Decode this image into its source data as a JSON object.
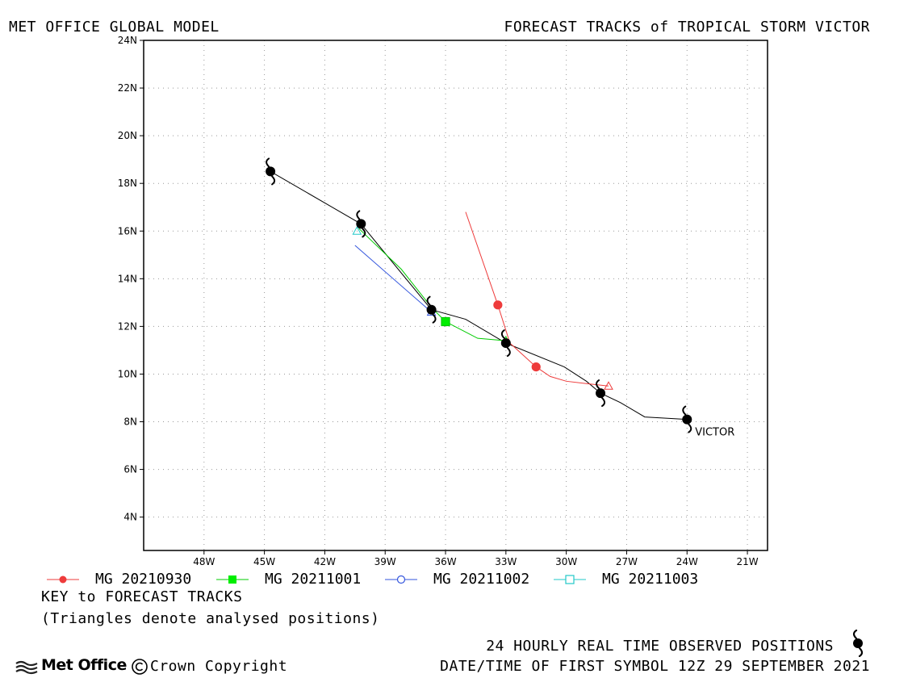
{
  "header": {
    "left_title": "MET OFFICE GLOBAL MODEL",
    "right_title": "FORECAST TRACKS of TROPICAL STORM VICTOR"
  },
  "map": {
    "lon_range": [
      -51,
      -20
    ],
    "lat_range": [
      2.6,
      24
    ],
    "lon_ticks": [
      -48,
      -45,
      -42,
      -39,
      -36,
      -33,
      -30,
      -27,
      -24,
      -21
    ],
    "lon_tick_labels": [
      "48W",
      "45W",
      "42W",
      "39W",
      "36W",
      "33W",
      "30W",
      "27W",
      "24W",
      "21W"
    ],
    "lat_ticks": [
      4,
      6,
      8,
      10,
      12,
      14,
      16,
      18,
      20,
      22,
      24
    ],
    "lat_tick_labels": [
      "4N",
      "6N",
      "8N",
      "10N",
      "12N",
      "14N",
      "16N",
      "18N",
      "20N",
      "22N",
      "24N"
    ],
    "grid": true,
    "storm_label": "VICTOR",
    "observed_track": [
      {
        "lon": -24.0,
        "lat": 8.1
      },
      {
        "lon": -26.1,
        "lat": 8.2
      },
      {
        "lon": -27.3,
        "lat": 8.8
      },
      {
        "lon": -28.3,
        "lat": 9.2
      },
      {
        "lon": -29.0,
        "lat": 9.7
      },
      {
        "lon": -30.1,
        "lat": 10.3
      },
      {
        "lon": -33.0,
        "lat": 11.3
      },
      {
        "lon": -35.0,
        "lat": 12.3
      },
      {
        "lon": -36.7,
        "lat": 12.7
      },
      {
        "lon": -40.2,
        "lat": 16.3
      },
      {
        "lon": -44.7,
        "lat": 18.5
      }
    ],
    "observed_symbols": [
      {
        "lon": -24.0,
        "lat": 8.1
      },
      {
        "lon": -28.3,
        "lat": 9.2
      },
      {
        "lon": -33.0,
        "lat": 11.3
      },
      {
        "lon": -36.7,
        "lat": 12.7
      },
      {
        "lon": -40.2,
        "lat": 16.3
      },
      {
        "lon": -44.7,
        "lat": 18.5
      }
    ],
    "forecast_tracks": [
      {
        "name": "MG 20210930",
        "color": "#ee3b3b",
        "marker": "circle",
        "marker_fill": true,
        "analysed": {
          "lon": -27.9,
          "lat": 9.5
        },
        "points": [
          {
            "lon": -27.9,
            "lat": 9.5
          },
          {
            "lon": -29.0,
            "lat": 9.6
          },
          {
            "lon": -30.0,
            "lat": 9.7
          },
          {
            "lon": -30.8,
            "lat": 9.9
          },
          {
            "lon": -31.5,
            "lat": 10.3
          },
          {
            "lon": -32.8,
            "lat": 11.3
          },
          {
            "lon": -33.4,
            "lat": 12.9
          },
          {
            "lon": -35.0,
            "lat": 16.8
          }
        ],
        "markers": [
          {
            "lon": -31.5,
            "lat": 10.3
          },
          {
            "lon": -33.4,
            "lat": 12.9
          }
        ]
      },
      {
        "name": "MG 20211001",
        "color": "#00cc00",
        "marker": "square",
        "marker_fill": true,
        "analysed": {
          "lon": -33.0,
          "lat": 11.4
        },
        "points": [
          {
            "lon": -33.0,
            "lat": 11.4
          },
          {
            "lon": -34.4,
            "lat": 11.5
          },
          {
            "lon": -36.0,
            "lat": 12.2
          },
          {
            "lon": -36.7,
            "lat": 12.8
          },
          {
            "lon": -38.2,
            "lat": 14.4
          },
          {
            "lon": -40.3,
            "lat": 16.1
          }
        ],
        "markers": [
          {
            "lon": -36.0,
            "lat": 12.2
          }
        ]
      },
      {
        "name": "MG 20211002",
        "color": "#3355dd",
        "marker": "circle",
        "marker_fill": false,
        "analysed": {
          "lon": -36.7,
          "lat": 12.6
        },
        "points": [
          {
            "lon": -36.7,
            "lat": 12.6
          },
          {
            "lon": -40.5,
            "lat": 15.4
          }
        ],
        "markers": []
      },
      {
        "name": "MG 20211003",
        "color": "#22c8c8",
        "marker": "square",
        "marker_fill": false,
        "analysed": {
          "lon": -40.4,
          "lat": 16.0
        },
        "points": [],
        "markers": []
      }
    ]
  },
  "key": {
    "title": "KEY to FORECAST TRACKS",
    "note": "(Triangles denote analysed positions)"
  },
  "footer": {
    "logo_text": "Met Office",
    "copyright": "Crown Copyright",
    "observed_positions": "24 HOURLY REAL TIME OBSERVED POSITIONS",
    "first_symbol": "DATE/TIME OF FIRST SYMBOL 12Z 29 SEPTEMBER 2021"
  }
}
